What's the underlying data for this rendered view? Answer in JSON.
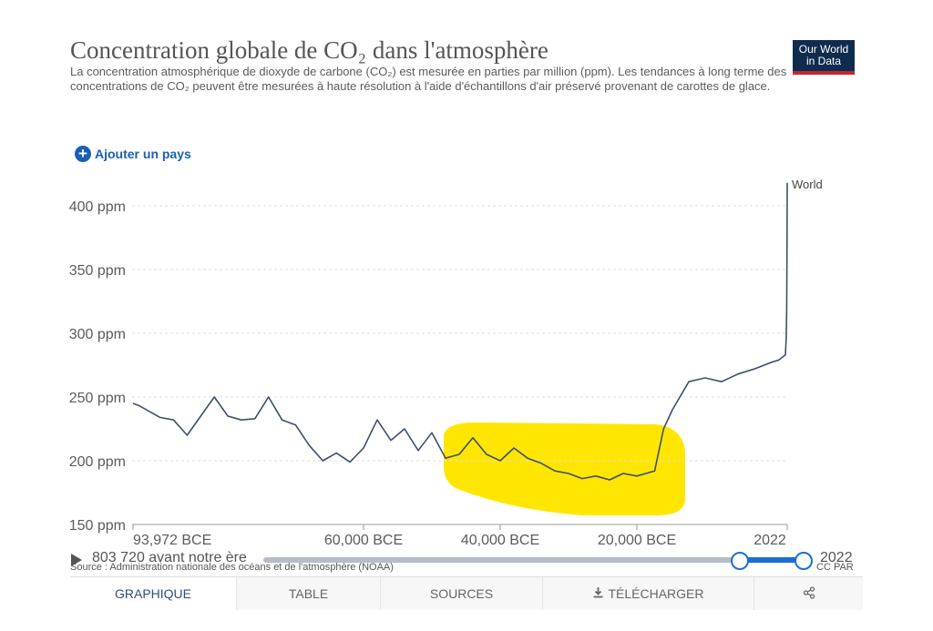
{
  "header": {
    "title": "Concentration globale de CO₂ dans l'atmosphère",
    "subtitle_lines": [
      "La concentration atmosphérique de dioxyde de carbone (CO₂) est mesurée en parties par million (ppm). Les tendances à long terme des",
      "concentrations de CO₂ peuvent être mesurées à haute résolution à l'aide d'échantillons d'air préservé provenant de carottes de glace."
    ],
    "logo_line1": "Our World",
    "logo_line2": "in Data"
  },
  "controls": {
    "add_country_label": "Ajouter un pays"
  },
  "chart_data": {
    "type": "line",
    "series": [
      {
        "name": "World",
        "x": [
          -93972,
          -93000,
          -90000,
          -88000,
          -86000,
          -84000,
          -82000,
          -80000,
          -78000,
          -76000,
          -74000,
          -72000,
          -70000,
          -68000,
          -66000,
          -64000,
          -62000,
          -60000,
          -58000,
          -56000,
          -54000,
          -52000,
          -50000,
          -48000,
          -46000,
          -44000,
          -42000,
          -40000,
          -38000,
          -36000,
          -34000,
          -32000,
          -30000,
          -28000,
          -26000,
          -24000,
          -22000,
          -20000,
          -18000,
          -16000,
          -14000,
          -12000,
          -10000,
          -8000,
          -6000,
          -4000,
          -2000,
          0,
          1000,
          1800,
          1900,
          1960,
          1990,
          2022
        ],
        "values": [
          245,
          243,
          234,
          232,
          220,
          235,
          250,
          235,
          232,
          233,
          250,
          232,
          228,
          212,
          200,
          206,
          199,
          210,
          232,
          216,
          225,
          208,
          222,
          202,
          205,
          218,
          205,
          200,
          210,
          202,
          198,
          192,
          190,
          186,
          188,
          185,
          190,
          188,
          190,
          192,
          225,
          240,
          262,
          265,
          262,
          268,
          272,
          277,
          279,
          283,
          296,
          317,
          354,
          418
        ]
      }
    ],
    "y_ticks": [
      "150 ppm",
      "200 ppm",
      "250 ppm",
      "300 ppm",
      "350 ppm",
      "400 ppm"
    ],
    "x_ticks": [
      "93,972 BCE",
      "60,000 BCE",
      "40,000 BCE",
      "20,000 BCE",
      "2022"
    ],
    "ylim": [
      150,
      420
    ],
    "grid": "horizontal-dashed",
    "line_color": "#3d4f6b",
    "highlight_color": "#ffe600"
  },
  "timeline": {
    "start_label": "803 720 avant notre ère",
    "end_label": "2022"
  },
  "footer": {
    "source": "Source : Administration nationale des océans et de l'atmosphère (NOAA)",
    "license": "CC PAR"
  },
  "tabs": [
    {
      "label": "GRAPHIQUE",
      "icon": ""
    },
    {
      "label": "TABLE",
      "icon": ""
    },
    {
      "label": "SOURCES",
      "icon": ""
    },
    {
      "label": "TÉLÉCHARGER",
      "icon": "download-icon"
    },
    {
      "label": "",
      "icon": "share-icon"
    }
  ]
}
